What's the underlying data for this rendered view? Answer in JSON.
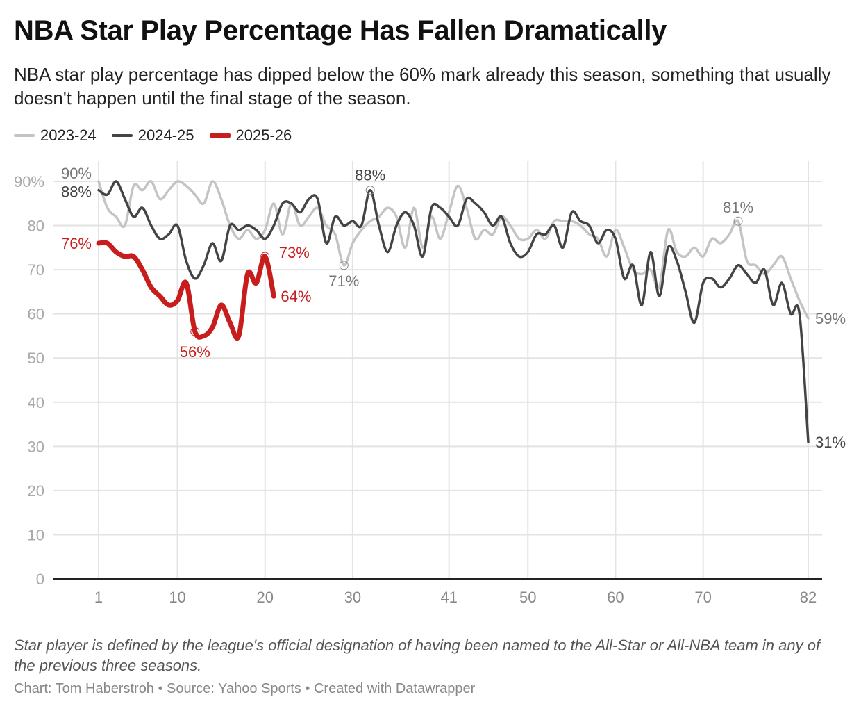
{
  "title": "NBA Star Play Percentage Has Fallen Dramatically",
  "subtitle": "NBA star play percentage has dipped below the 60% mark already this season, something that usually doesn't happen until the final stage of the season.",
  "notes": "Star player is defined by the league's official designation of having been named to the All-Star or All-NBA team in any of the previous three seasons.",
  "credit": "Chart: Tom Haberstroh • Source: Yahoo Sports • Created with Datawrapper",
  "chart_data": {
    "type": "line",
    "xlabel": "",
    "ylabel": "",
    "xlim": [
      1,
      82
    ],
    "ylim": [
      0,
      90
    ],
    "x_ticks": [
      "1",
      "10",
      "20",
      "30",
      "41",
      "50",
      "60",
      "70",
      "82"
    ],
    "y_ticks": [
      "0",
      "10",
      "20",
      "30",
      "40",
      "50",
      "60",
      "70",
      "80",
      "90%"
    ],
    "legend_position": "top-left",
    "grid": true,
    "series": [
      {
        "name": "2023-24",
        "color": "#c4c4c4",
        "values": [
          90,
          84,
          82,
          80,
          89,
          88,
          90,
          86,
          88,
          90,
          89,
          87,
          85,
          90,
          86,
          80,
          77,
          79,
          77,
          79,
          85,
          78,
          85,
          80,
          82,
          84,
          80,
          78,
          71,
          76,
          79,
          81,
          82,
          84,
          82,
          75,
          84,
          75,
          82,
          77,
          83,
          89,
          84,
          77,
          79,
          78,
          82,
          80,
          77,
          77,
          79,
          77,
          81,
          81,
          81,
          80,
          78,
          77,
          73,
          79,
          75,
          70,
          69,
          70,
          66,
          79,
          74,
          73,
          75,
          73,
          77,
          76,
          78,
          81,
          72,
          71,
          69,
          71,
          73,
          68,
          63,
          59
        ],
        "labels": [
          {
            "x": 1,
            "y": 90,
            "text": "90%"
          },
          {
            "x": 29,
            "y": 71,
            "text": "71%"
          },
          {
            "x": 74,
            "y": 81,
            "text": "81%"
          },
          {
            "x": 82,
            "y": 59,
            "text": "59%"
          }
        ]
      },
      {
        "name": "2024-25",
        "color": "#444444",
        "values": [
          88,
          87,
          90,
          86,
          82,
          84,
          80,
          77,
          78,
          80,
          72,
          68,
          71,
          76,
          72,
          80,
          79,
          80,
          79,
          77,
          80,
          85,
          85,
          83,
          86,
          86,
          76,
          82,
          80,
          81,
          80,
          88,
          80,
          74,
          80,
          83,
          80,
          73,
          84,
          84,
          82,
          80,
          86,
          85,
          83,
          80,
          82,
          76,
          73,
          74,
          78,
          78,
          80,
          75,
          83,
          81,
          80,
          76,
          79,
          77,
          68,
          71,
          62,
          74,
          64,
          75,
          72,
          65,
          58,
          67,
          68,
          66,
          68,
          71,
          69,
          67,
          70,
          62,
          67,
          60,
          60,
          31
        ],
        "labels": [
          {
            "x": 1,
            "y": 88,
            "text": "88%"
          },
          {
            "x": 32,
            "y": 88,
            "text": "88%"
          },
          {
            "x": 82,
            "y": 31,
            "text": "31%"
          }
        ]
      },
      {
        "name": "2025-26",
        "color": "#c71e1d",
        "values": [
          76,
          76,
          74,
          73,
          73,
          70,
          66,
          64,
          62,
          63,
          67,
          56,
          55,
          57,
          62,
          58,
          55,
          69,
          67,
          73,
          64
        ],
        "labels": [
          {
            "x": 1,
            "y": 76,
            "text": "76%"
          },
          {
            "x": 12,
            "y": 56,
            "text": "56%"
          },
          {
            "x": 20,
            "y": 73,
            "text": "73%"
          },
          {
            "x": 21,
            "y": 64,
            "text": "64%"
          }
        ]
      }
    ]
  }
}
